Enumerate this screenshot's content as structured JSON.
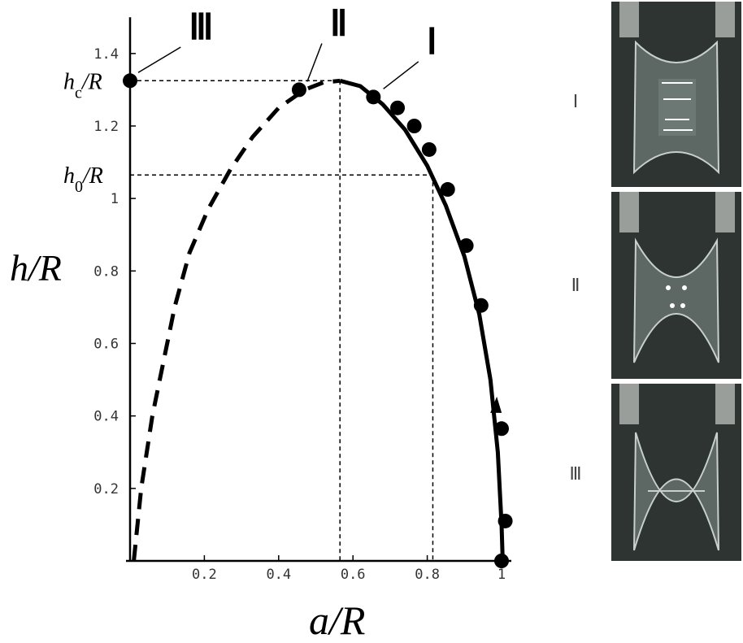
{
  "chart_data": {
    "type": "scatter",
    "xlabel": "a/R",
    "ylabel": "h/R",
    "xlim": [
      0,
      1
    ],
    "ylim": [
      0,
      1.5
    ],
    "x_ticks": [
      0.2,
      0.4,
      0.6,
      0.8,
      1
    ],
    "x_tick_labels": [
      "0.2",
      "0.4",
      "0.6",
      "0.8",
      "1"
    ],
    "y_ticks": [
      0.2,
      0.4,
      0.6,
      0.8,
      1,
      1.2,
      1.4
    ],
    "y_tick_labels": [
      "0.2",
      "0.4",
      "0.6",
      "0.8",
      "1",
      "1.2",
      "1.4"
    ],
    "hc_label": "hc/R",
    "h0_label": "h0/R",
    "hc_value": 1.325,
    "h0_value": 1.065,
    "a_at_hc": 0.565,
    "a_at_h0": 0.815,
    "series": [
      {
        "style": "dashed",
        "points": [
          [
            0.01,
            0.0
          ],
          [
            0.03,
            0.2
          ],
          [
            0.06,
            0.4
          ],
          [
            0.09,
            0.55
          ],
          [
            0.12,
            0.7
          ],
          [
            0.16,
            0.85
          ],
          [
            0.21,
            0.97
          ],
          [
            0.27,
            1.08
          ],
          [
            0.33,
            1.17
          ],
          [
            0.4,
            1.25
          ],
          [
            0.47,
            1.3
          ],
          [
            0.52,
            1.32
          ],
          [
            0.565,
            1.325
          ]
        ]
      },
      {
        "style": "solid",
        "points": [
          [
            0.565,
            1.325
          ],
          [
            0.62,
            1.31
          ],
          [
            0.68,
            1.26
          ],
          [
            0.74,
            1.19
          ],
          [
            0.8,
            1.09
          ],
          [
            0.85,
            0.98
          ],
          [
            0.9,
            0.84
          ],
          [
            0.94,
            0.68
          ],
          [
            0.97,
            0.5
          ],
          [
            0.99,
            0.3
          ],
          [
            1.0,
            0.1
          ],
          [
            1.003,
            0.0
          ]
        ]
      },
      {
        "style": "markers",
        "points": [
          [
            0.0,
            1.325
          ],
          [
            0.455,
            1.3
          ],
          [
            0.655,
            1.28
          ],
          [
            0.72,
            1.25
          ],
          [
            0.765,
            1.2
          ],
          [
            0.805,
            1.135
          ],
          [
            0.855,
            1.025
          ],
          [
            0.905,
            0.87
          ],
          [
            0.945,
            0.705
          ],
          [
            1.0,
            0.365
          ],
          [
            1.01,
            0.11
          ],
          [
            1.0,
            0.0
          ]
        ]
      }
    ],
    "arrow": {
      "at": [
        0.985,
        0.44
      ]
    },
    "annotations": [
      {
        "text": "Ⅲ",
        "point": [
          0.0,
          1.325
        ],
        "text_pos": [
          0.18,
          1.44
        ]
      },
      {
        "text": "Ⅱ",
        "point": [
          0.455,
          1.3
        ],
        "text_pos": [
          0.56,
          1.45
        ]
      },
      {
        "text": "Ⅰ",
        "point": [
          0.66,
          1.28
        ],
        "text_pos": [
          0.82,
          1.4
        ]
      }
    ]
  },
  "photos": {
    "labels": [
      "Ⅰ",
      "Ⅱ",
      "Ⅲ"
    ],
    "background": "#2d3331"
  }
}
